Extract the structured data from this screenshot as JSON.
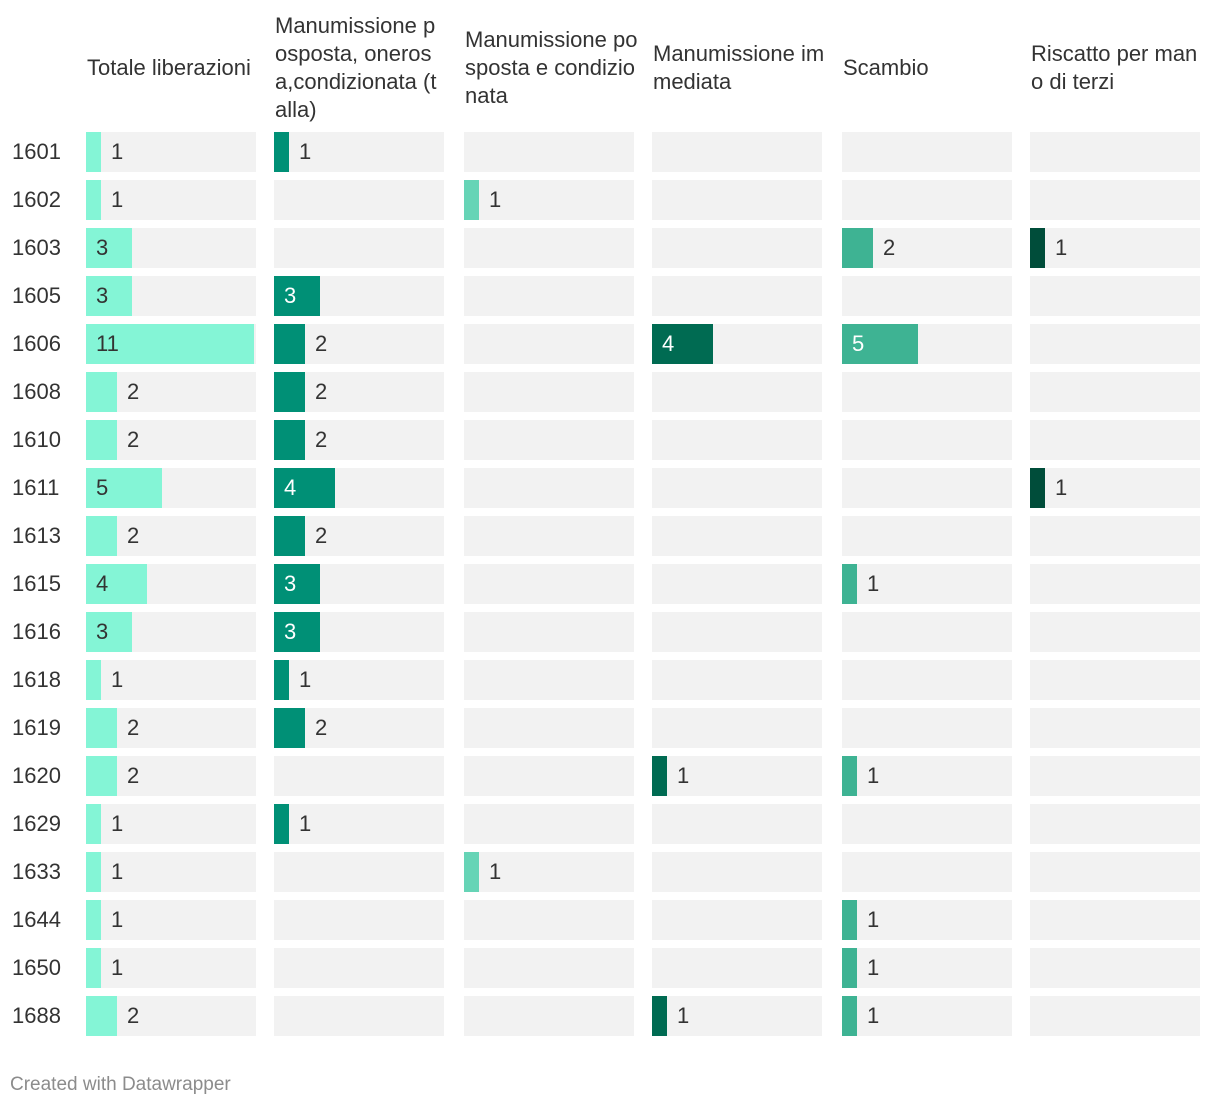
{
  "chart_data": {
    "type": "bar",
    "layout": "small-multiples",
    "categories": [
      "1601",
      "1602",
      "1603",
      "1605",
      "1606",
      "1608",
      "1610",
      "1611",
      "1613",
      "1615",
      "1616",
      "1618",
      "1619",
      "1620",
      "1629",
      "1633",
      "1644",
      "1650",
      "1688"
    ],
    "series": [
      {
        "name": "Totale liberazioni",
        "color": "#84f5d6",
        "values": [
          1,
          1,
          3,
          3,
          11,
          2,
          2,
          5,
          2,
          4,
          3,
          1,
          2,
          2,
          1,
          1,
          1,
          1,
          2
        ]
      },
      {
        "name": "Manumissione posposta, onerosa,condizionata (talla)",
        "color": "#009076",
        "values": [
          1,
          null,
          null,
          3,
          2,
          2,
          2,
          4,
          2,
          3,
          3,
          1,
          2,
          null,
          1,
          null,
          null,
          null,
          null
        ]
      },
      {
        "name": "Manumissione posposta e condizionata",
        "color": "#66d4b6",
        "values": [
          null,
          1,
          null,
          null,
          null,
          null,
          null,
          null,
          null,
          null,
          null,
          null,
          null,
          null,
          null,
          1,
          null,
          null,
          null
        ]
      },
      {
        "name": "Manumissione immediata",
        "color": "#006b52",
        "values": [
          null,
          null,
          null,
          null,
          4,
          null,
          null,
          null,
          null,
          null,
          null,
          null,
          null,
          1,
          null,
          null,
          null,
          null,
          1
        ]
      },
      {
        "name": "Scambio",
        "color": "#3eb393",
        "values": [
          null,
          null,
          2,
          null,
          5,
          null,
          null,
          null,
          null,
          1,
          null,
          null,
          null,
          1,
          null,
          null,
          1,
          1,
          1
        ]
      },
      {
        "name": "Riscatto per mano di terzi",
        "color": "#004d3a",
        "values": [
          null,
          null,
          1,
          null,
          null,
          null,
          null,
          1,
          null,
          null,
          null,
          null,
          null,
          null,
          null,
          null,
          null,
          null,
          null
        ]
      }
    ],
    "xlim": [
      0,
      11
    ]
  },
  "footer": "Created with Datawrapper"
}
